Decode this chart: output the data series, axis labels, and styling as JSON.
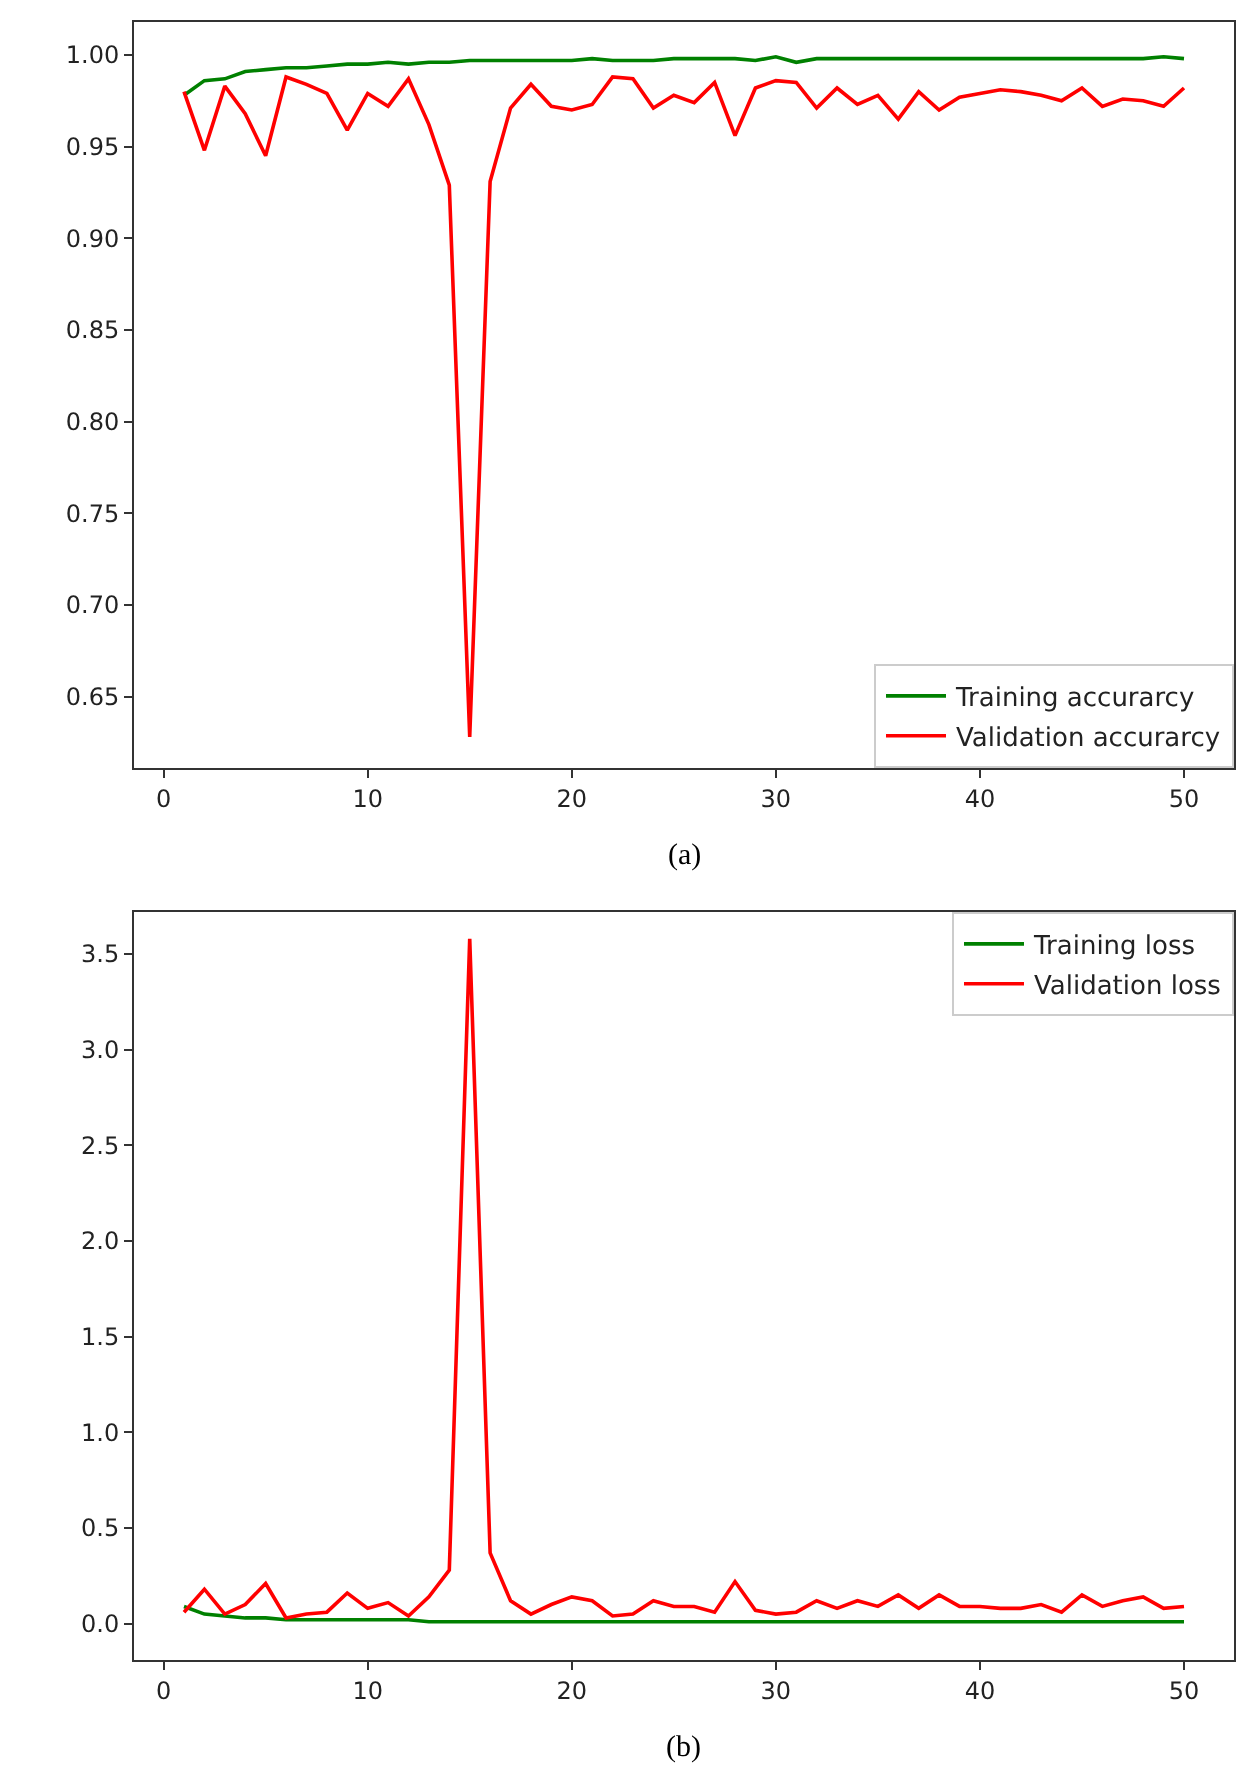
{
  "chart_data": [
    {
      "type": "line",
      "x": [
        1,
        2,
        3,
        4,
        5,
        6,
        7,
        8,
        9,
        10,
        11,
        12,
        13,
        14,
        15,
        16,
        17,
        18,
        19,
        20,
        21,
        22,
        23,
        24,
        25,
        26,
        27,
        28,
        29,
        30,
        31,
        32,
        33,
        34,
        35,
        36,
        37,
        38,
        39,
        40,
        41,
        42,
        43,
        44,
        45,
        46,
        47,
        48,
        49,
        50
      ],
      "series": [
        {
          "name": "Training accurarcy",
          "color": "#008000",
          "values": [
            0.978,
            0.986,
            0.987,
            0.991,
            0.992,
            0.993,
            0.993,
            0.994,
            0.995,
            0.995,
            0.996,
            0.995,
            0.996,
            0.996,
            0.997,
            0.997,
            0.997,
            0.997,
            0.997,
            0.997,
            0.998,
            0.997,
            0.997,
            0.997,
            0.998,
            0.998,
            0.998,
            0.998,
            0.997,
            0.999,
            0.996,
            0.998,
            0.998,
            0.998,
            0.998,
            0.998,
            0.998,
            0.998,
            0.998,
            0.998,
            0.998,
            0.998,
            0.998,
            0.998,
            0.998,
            0.998,
            0.998,
            0.998,
            0.999,
            0.998
          ]
        },
        {
          "name": "Validation accurarcy",
          "color": "#ff0000",
          "values": [
            0.98,
            0.948,
            0.983,
            0.968,
            0.945,
            0.988,
            0.984,
            0.979,
            0.959,
            0.979,
            0.972,
            0.987,
            0.962,
            0.929,
            0.628,
            0.931,
            0.971,
            0.984,
            0.972,
            0.97,
            0.973,
            0.988,
            0.987,
            0.971,
            0.978,
            0.974,
            0.985,
            0.956,
            0.982,
            0.986,
            0.985,
            0.971,
            0.982,
            0.973,
            0.978,
            0.965,
            0.98,
            0.97,
            0.977,
            0.979,
            0.981,
            0.98,
            0.978,
            0.975,
            0.982,
            0.972,
            0.976,
            0.975,
            0.972,
            0.982
          ]
        }
      ],
      "xlim": [
        -1.45,
        52.45
      ],
      "xticks": [
        0,
        10,
        20,
        30,
        40,
        50
      ],
      "ylim": [
        0.611,
        1.018
      ],
      "yticks": [
        0.65,
        {
          "value": 0.7,
          "label": "0.70"
        },
        0.75,
        {
          "value": 0.8,
          "label": "0.80"
        },
        0.85,
        {
          "value": 0.9,
          "label": "0.90"
        },
        0.95,
        {
          "value": 1,
          "label": "1.00"
        }
      ],
      "legend": "bottom right",
      "grid": false,
      "marker": "none",
      "line_style": "solid",
      "annotations": [
        "(a)"
      ]
    },
    {
      "type": "line",
      "x": [
        1,
        2,
        3,
        4,
        5,
        6,
        7,
        8,
        9,
        10,
        11,
        12,
        13,
        14,
        15,
        16,
        17,
        18,
        19,
        20,
        21,
        22,
        23,
        24,
        25,
        26,
        27,
        28,
        29,
        30,
        31,
        32,
        33,
        34,
        35,
        36,
        37,
        38,
        39,
        40,
        41,
        42,
        43,
        44,
        45,
        46,
        47,
        48,
        49,
        50
      ],
      "series": [
        {
          "name": "Training loss",
          "color": "#008000",
          "values": [
            0.09,
            0.05,
            0.04,
            0.03,
            0.03,
            0.02,
            0.02,
            0.02,
            0.02,
            0.02,
            0.02,
            0.02,
            0.01,
            0.01,
            0.01,
            0.01,
            0.01,
            0.01,
            0.01,
            0.01,
            0.01,
            0.01,
            0.01,
            0.01,
            0.01,
            0.01,
            0.01,
            0.01,
            0.01,
            0.01,
            0.01,
            0.01,
            0.01,
            0.01,
            0.01,
            0.01,
            0.01,
            0.01,
            0.01,
            0.01,
            0.01,
            0.01,
            0.01,
            0.01,
            0.01,
            0.01,
            0.01,
            0.01,
            0.01,
            0.01
          ]
        },
        {
          "name": "Validation loss",
          "color": "#ff0000",
          "values": [
            0.06,
            0.18,
            0.05,
            0.1,
            0.21,
            0.03,
            0.05,
            0.06,
            0.16,
            0.08,
            0.11,
            0.04,
            0.14,
            0.28,
            3.58,
            0.37,
            0.12,
            0.05,
            0.1,
            0.14,
            0.12,
            0.04,
            0.05,
            0.12,
            0.09,
            0.09,
            0.06,
            0.22,
            0.07,
            0.05,
            0.06,
            0.12,
            0.08,
            0.12,
            0.09,
            0.15,
            0.08,
            0.15,
            0.09,
            0.09,
            0.08,
            0.08,
            0.1,
            0.06,
            0.15,
            0.09,
            0.12,
            0.14,
            0.08,
            0.09
          ]
        }
      ],
      "xlim": [
        -1.45,
        52.45
      ],
      "xticks": [
        0,
        10,
        20,
        30,
        40,
        50
      ],
      "ylim": [
        -0.19,
        3.72
      ],
      "yticks": [
        {
          "value": 0,
          "label": "0.0"
        },
        0.5,
        {
          "value": 1,
          "label": "1.0"
        },
        1.5,
        {
          "value": 2,
          "label": "2.0"
        },
        2.5,
        {
          "value": 3,
          "label": "3.0"
        },
        3.5
      ],
      "legend": "top right",
      "grid": false,
      "marker": "none",
      "line_style": "solid",
      "annotations": [
        "(b)"
      ]
    }
  ]
}
